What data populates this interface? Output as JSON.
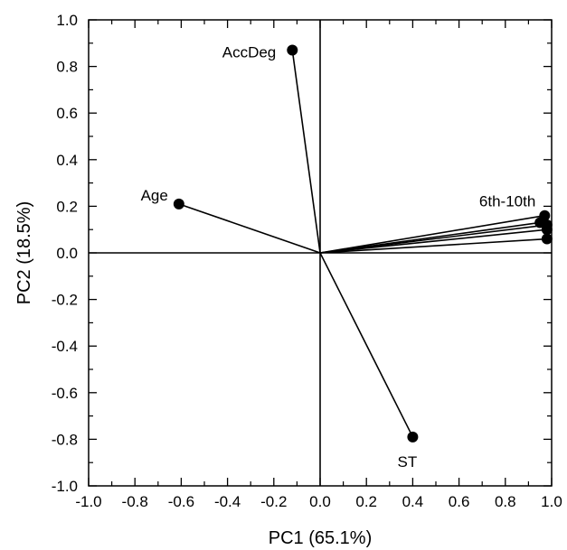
{
  "chart_data": {
    "type": "scatter",
    "subtype": "pca-loadings-biplot",
    "xlabel": "PC1 (65.1%)",
    "ylabel": "PC2 (18.5%)",
    "xlim": [
      -1.0,
      1.0
    ],
    "ylim": [
      -1.0,
      1.0
    ],
    "xticks": [
      -1.0,
      -0.8,
      -0.6,
      -0.4,
      -0.2,
      0.0,
      0.2,
      0.4,
      0.6,
      0.8,
      1.0
    ],
    "yticks": [
      -1.0,
      -0.8,
      -0.6,
      -0.4,
      -0.2,
      0.0,
      0.2,
      0.4,
      0.6,
      0.8,
      1.0
    ],
    "xtick_labels": [
      "-1.0",
      "-0.8",
      "-0.6",
      "-0.4",
      "-0.2",
      "0.0",
      "0.2",
      "0.4",
      "0.6",
      "0.8",
      "1.0"
    ],
    "ytick_labels": [
      "-1.0",
      "-0.8",
      "-0.6",
      "-0.4",
      "-0.2",
      "0.0",
      "0.2",
      "0.4",
      "0.6",
      "0.8",
      "1.0"
    ],
    "grid": false,
    "zero_lines": true,
    "vectors_from_origin": true,
    "points": [
      {
        "label": "AccDeg",
        "x": -0.12,
        "y": 0.87
      },
      {
        "label": "Age",
        "x": -0.61,
        "y": 0.21
      },
      {
        "label": "ST",
        "x": 0.4,
        "y": -0.79
      },
      {
        "label": "",
        "x": 0.97,
        "y": 0.16
      },
      {
        "label": "",
        "x": 0.95,
        "y": 0.13
      },
      {
        "label": "",
        "x": 0.98,
        "y": 0.12
      },
      {
        "label": "",
        "x": 0.98,
        "y": 0.1
      },
      {
        "label": "",
        "x": 0.98,
        "y": 0.06
      }
    ],
    "group_label": {
      "text": "6th-10th",
      "x": 0.97,
      "y": 0.16
    },
    "marker_color": "#000000",
    "line_color": "#000000"
  }
}
